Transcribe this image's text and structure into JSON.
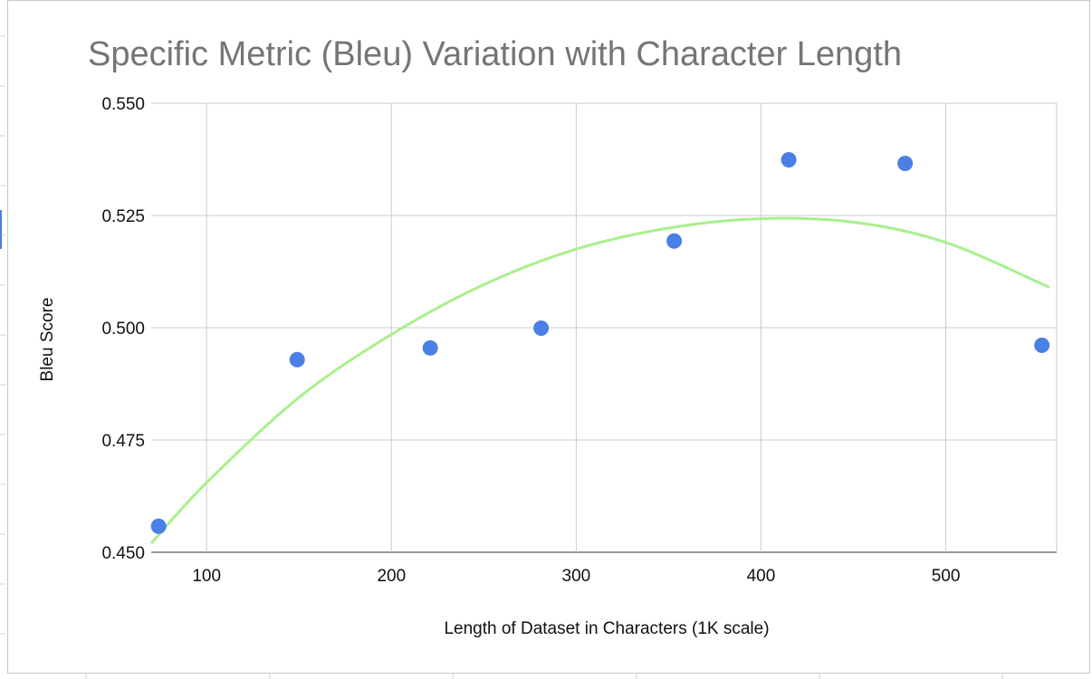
{
  "chart_data": {
    "type": "scatter",
    "title": "Specific Metric (Bleu) Variation with Character Length",
    "xlabel": "Length of Dataset in Characters (1K scale)",
    "ylabel": "Bleu Score",
    "xlim": [
      70,
      560
    ],
    "ylim": [
      0.45,
      0.55
    ],
    "x_ticks": [
      100,
      200,
      300,
      400,
      500
    ],
    "x_tick_labels": [
      "100",
      "200",
      "300",
      "400",
      "500"
    ],
    "y_ticks": [
      0.45,
      0.475,
      0.5,
      0.525,
      0.55
    ],
    "y_tick_labels": [
      "0.450",
      "0.475",
      "0.500",
      "0.525",
      "0.550"
    ],
    "grid": true,
    "legend": "none",
    "series": [
      {
        "color": "#4a7fe6",
        "points": [
          {
            "x": 74,
            "y": 0.4558
          },
          {
            "x": 149,
            "y": 0.4929
          },
          {
            "x": 221,
            "y": 0.4955
          },
          {
            "x": 281,
            "y": 0.4999
          },
          {
            "x": 353,
            "y": 0.5193
          },
          {
            "x": 415,
            "y": 0.5374
          },
          {
            "x": 478,
            "y": 0.5366
          },
          {
            "x": 552,
            "y": 0.4961
          }
        ]
      }
    ],
    "trendline": {
      "type": "polynomial",
      "color": "#a8f08c",
      "x_range": [
        70,
        556
      ],
      "points": [
        {
          "x": 70,
          "y": 0.452
        },
        {
          "x": 100,
          "y": 0.4655
        },
        {
          "x": 150,
          "y": 0.4845
        },
        {
          "x": 200,
          "y": 0.4985
        },
        {
          "x": 250,
          "y": 0.5096
        },
        {
          "x": 300,
          "y": 0.5175
        },
        {
          "x": 350,
          "y": 0.5222
        },
        {
          "x": 400,
          "y": 0.5243
        },
        {
          "x": 450,
          "y": 0.5235
        },
        {
          "x": 500,
          "y": 0.519
        },
        {
          "x": 556,
          "y": 0.509
        }
      ]
    }
  }
}
